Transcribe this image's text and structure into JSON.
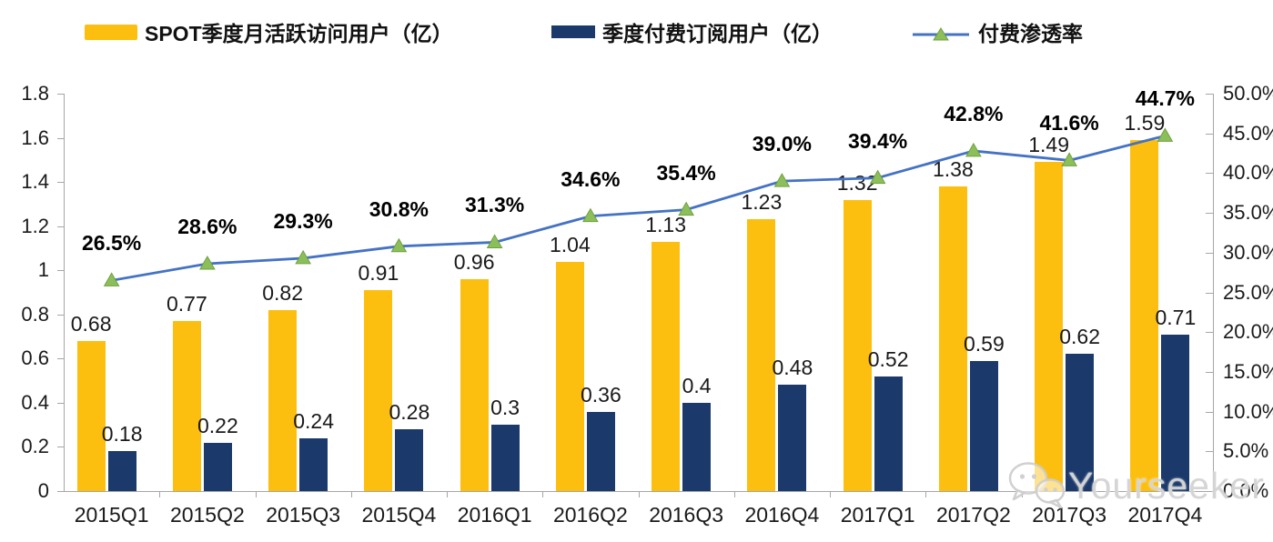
{
  "legend": {
    "mau": "SPOT季度月活跃访问用户（亿）",
    "subs": "季度付费订阅用户（亿）",
    "penetration": "付费渗透率"
  },
  "watermark": {
    "text": "Yourseeker"
  },
  "colors": {
    "mau_bar": "#FDBF0F",
    "subs_bar": "#1B3A6B",
    "penetration_line": "#4472C4",
    "marker_fill": "#8CBF5A",
    "marker_stroke": "#6FA042",
    "axis": "#A6A6A6",
    "label_text": "#1a1a1a"
  },
  "chart_data": {
    "type": "bar",
    "subtype": "grouped-bars-with-line",
    "categories": [
      "2015Q1",
      "2015Q2",
      "2015Q3",
      "2015Q4",
      "2016Q1",
      "2016Q2",
      "2016Q3",
      "2016Q4",
      "2017Q1",
      "2017Q2",
      "2017Q3",
      "2017Q4"
    ],
    "series": [
      {
        "name": "SPOT季度月活跃访问用户（亿）",
        "type": "bar",
        "axis": "left",
        "values": [
          0.68,
          0.77,
          0.82,
          0.91,
          0.96,
          1.04,
          1.13,
          1.23,
          1.32,
          1.38,
          1.49,
          1.59
        ]
      },
      {
        "name": "季度付费订阅用户（亿）",
        "type": "bar",
        "axis": "left",
        "values": [
          0.18,
          0.22,
          0.24,
          0.28,
          0.3,
          0.36,
          0.4,
          0.48,
          0.52,
          0.59,
          0.62,
          0.71
        ]
      },
      {
        "name": "付费渗透率",
        "type": "line",
        "axis": "right",
        "values": [
          26.5,
          28.6,
          29.3,
          30.8,
          31.3,
          34.6,
          35.4,
          39.0,
          39.4,
          42.8,
          41.6,
          44.7
        ]
      }
    ],
    "y_left": {
      "min": 0,
      "max": 1.8,
      "step": 0.2
    },
    "y_right": {
      "min": 0,
      "max": 50,
      "step": 5,
      "suffix": "%"
    },
    "grid": false,
    "legend_position": "top",
    "title": ""
  }
}
